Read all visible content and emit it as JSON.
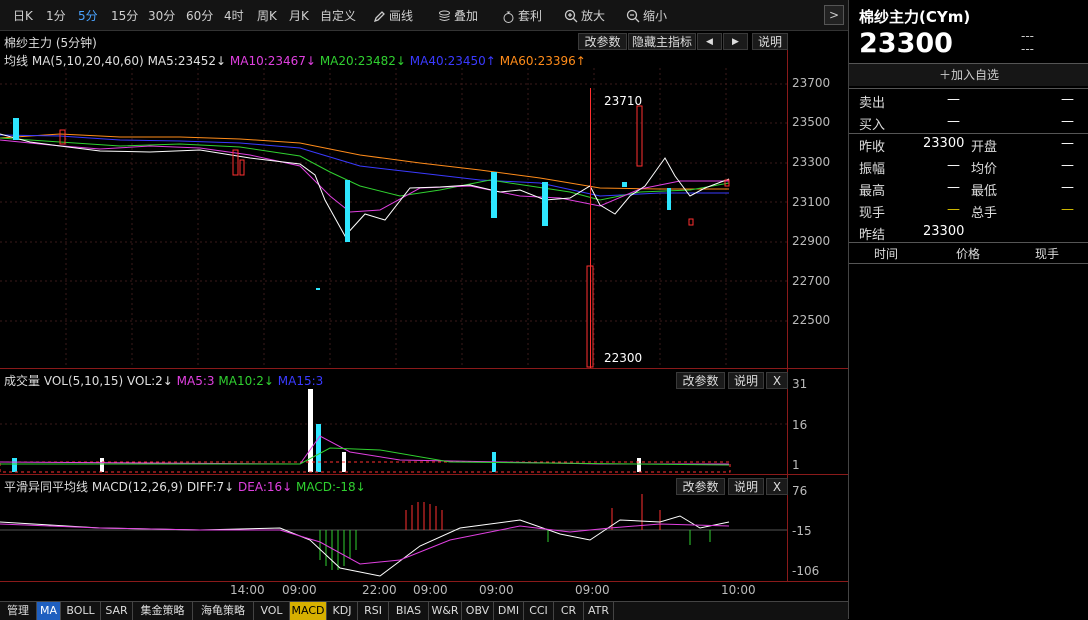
{
  "toolbar": {
    "periods": [
      "日K",
      "1分",
      "5分",
      "15分",
      "30分",
      "60分",
      "4时",
      "周K",
      "月K",
      "自定义"
    ],
    "active_period": "5分",
    "tools": {
      "draw": "画线",
      "overlay": "叠加",
      "arbitrage": "套利",
      "zoom_in": "放大",
      "zoom_out": "缩小"
    },
    "collapse": ">"
  },
  "main_panel": {
    "title": "棉纱主力 (5分钟)",
    "buttons": {
      "params": "改参数",
      "hide": "隐藏主指标",
      "left": "◀",
      "right": "▶",
      "help": "说明"
    },
    "ma_label": "均线",
    "ma_config": "MA(5,10,20,40,60)",
    "ma_values": [
      {
        "text": "MA5:23452↓",
        "color": "#e0e0e0"
      },
      {
        "text": "MA10:23467↓",
        "color": "#e040e0"
      },
      {
        "text": "MA20:23482↓",
        "color": "#30d030"
      },
      {
        "text": "MA40:23450↑",
        "color": "#3a3aff"
      },
      {
        "text": "MA60:23396↑",
        "color": "#ff8c1a"
      }
    ],
    "price_axis": [
      "23700",
      "23500",
      "23300",
      "23100",
      "22900",
      "22700",
      "22500"
    ],
    "high_label": "23710",
    "low_label": "22300"
  },
  "volume_panel": {
    "title": "成交量",
    "config": "VOL(5,10,15)",
    "values": [
      {
        "text": "VOL:2↓",
        "color": "#e0e0e0"
      },
      {
        "text": "MA5:3",
        "color": "#e040e0"
      },
      {
        "text": "MA10:2↓",
        "color": "#30d030"
      },
      {
        "text": "MA15:3",
        "color": "#3a3aff"
      }
    ],
    "buttons": {
      "params": "改参数",
      "help": "说明",
      "close": "X"
    },
    "axis": [
      "31",
      "16",
      "1"
    ]
  },
  "macd_panel": {
    "title": "平滑异同平均线",
    "config": "MACD(12,26,9)",
    "values": [
      {
        "text": "DIFF:7↓",
        "color": "#e0e0e0"
      },
      {
        "text": "DEA:16↓",
        "color": "#e040e0"
      },
      {
        "text": "MACD:-18↓",
        "color": "#30d030"
      }
    ],
    "buttons": {
      "params": "改参数",
      "help": "说明",
      "close": "X"
    },
    "axis": [
      "76",
      "-15",
      "-106"
    ]
  },
  "time_axis": [
    "14:00",
    "09:00",
    "22:00",
    "09:00",
    "09:00",
    "09:00",
    "10:00"
  ],
  "bottom_tabs": [
    "管理",
    "MA",
    "BOLL",
    "SAR",
    "集金策略",
    "海龟策略",
    "VOL",
    "MACD",
    "KDJ",
    "RSI",
    "BIAS",
    "W&R",
    "OBV",
    "DMI",
    "CCI",
    "CR",
    "ATR"
  ],
  "quote": {
    "name": "棉纱主力(CYm)",
    "price": "23300",
    "change1": "---",
    "change2": "---",
    "add_watch": "加入自选",
    "sell_label": "卖出",
    "sell_price": "—",
    "sell_vol": "—",
    "buy_label": "买入",
    "buy_price": "—",
    "buy_vol": "—",
    "rows": [
      {
        "l1": "昨收",
        "v1": "23300",
        "l2": "开盘",
        "v2": "—"
      },
      {
        "l1": "振幅",
        "v1": "—",
        "l2": "均价",
        "v2": "—"
      },
      {
        "l1": "最高",
        "v1": "—",
        "l2": "最低",
        "v2": "—"
      },
      {
        "l1": "现手",
        "v1": "—",
        "l2": "总手",
        "v2": "—"
      },
      {
        "l1": "昨结",
        "v1": "23300",
        "l2": "",
        "v2": ""
      }
    ],
    "ticks_header": {
      "time": "时间",
      "price": "价格",
      "vol": "现手"
    }
  },
  "colors": {
    "up": "#ff3030",
    "down": "#2ee6ff",
    "grid": "#3a1a1a",
    "accent": "#4aa3ff"
  }
}
